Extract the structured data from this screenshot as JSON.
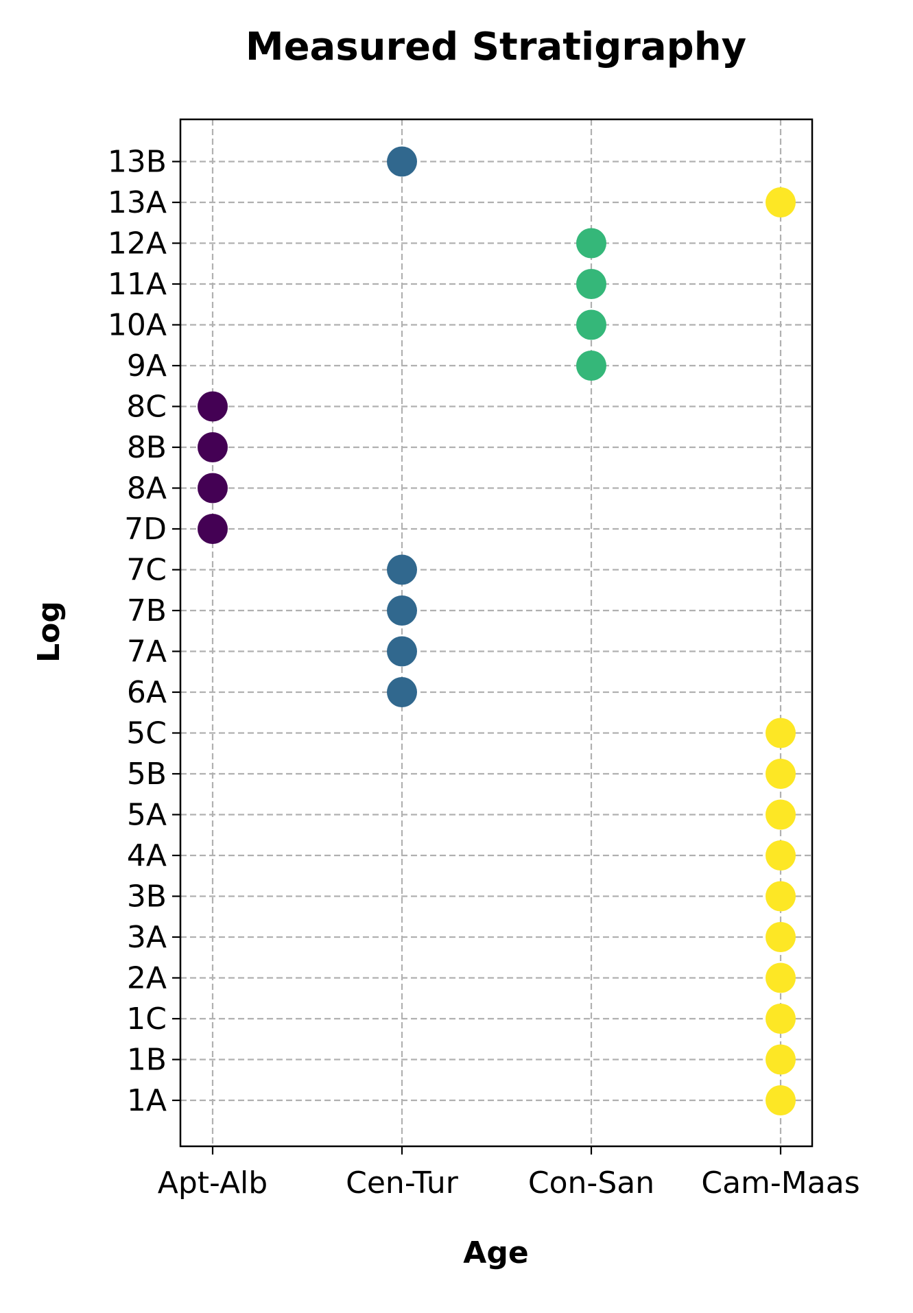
{
  "chart_data": {
    "type": "scatter",
    "title": "Measured Stratigraphy",
    "xlabel": "Age",
    "ylabel": "Log",
    "x_categories": [
      "Apt-Alb",
      "Cen-Tur",
      "Con-San",
      "Cam-Maas"
    ],
    "y_categories": [
      "1A",
      "1B",
      "1C",
      "2A",
      "3A",
      "3B",
      "4A",
      "5A",
      "5B",
      "5C",
      "6A",
      "7A",
      "7B",
      "7C",
      "7D",
      "8A",
      "8B",
      "8C",
      "9A",
      "10A",
      "11A",
      "12A",
      "13A",
      "13B"
    ],
    "grid": true,
    "points": [
      {
        "x": "Cam-Maas",
        "y": "1A",
        "color": "#fde725"
      },
      {
        "x": "Cam-Maas",
        "y": "1B",
        "color": "#fde725"
      },
      {
        "x": "Cam-Maas",
        "y": "1C",
        "color": "#fde725"
      },
      {
        "x": "Cam-Maas",
        "y": "2A",
        "color": "#fde725"
      },
      {
        "x": "Cam-Maas",
        "y": "3A",
        "color": "#fde725"
      },
      {
        "x": "Cam-Maas",
        "y": "3B",
        "color": "#fde725"
      },
      {
        "x": "Cam-Maas",
        "y": "4A",
        "color": "#fde725"
      },
      {
        "x": "Cam-Maas",
        "y": "5A",
        "color": "#fde725"
      },
      {
        "x": "Cam-Maas",
        "y": "5B",
        "color": "#fde725"
      },
      {
        "x": "Cam-Maas",
        "y": "5C",
        "color": "#fde725"
      },
      {
        "x": "Cen-Tur",
        "y": "6A",
        "color": "#31688e"
      },
      {
        "x": "Cen-Tur",
        "y": "7A",
        "color": "#31688e"
      },
      {
        "x": "Cen-Tur",
        "y": "7B",
        "color": "#31688e"
      },
      {
        "x": "Cen-Tur",
        "y": "7C",
        "color": "#31688e"
      },
      {
        "x": "Apt-Alb",
        "y": "7D",
        "color": "#440154"
      },
      {
        "x": "Apt-Alb",
        "y": "8A",
        "color": "#440154"
      },
      {
        "x": "Apt-Alb",
        "y": "8B",
        "color": "#440154"
      },
      {
        "x": "Apt-Alb",
        "y": "8C",
        "color": "#440154"
      },
      {
        "x": "Con-San",
        "y": "9A",
        "color": "#35b779"
      },
      {
        "x": "Con-San",
        "y": "10A",
        "color": "#35b779"
      },
      {
        "x": "Con-San",
        "y": "11A",
        "color": "#35b779"
      },
      {
        "x": "Con-San",
        "y": "12A",
        "color": "#35b779"
      },
      {
        "x": "Cam-Maas",
        "y": "13A",
        "color": "#fde725"
      },
      {
        "x": "Cen-Tur",
        "y": "13B",
        "color": "#31688e"
      }
    ]
  }
}
